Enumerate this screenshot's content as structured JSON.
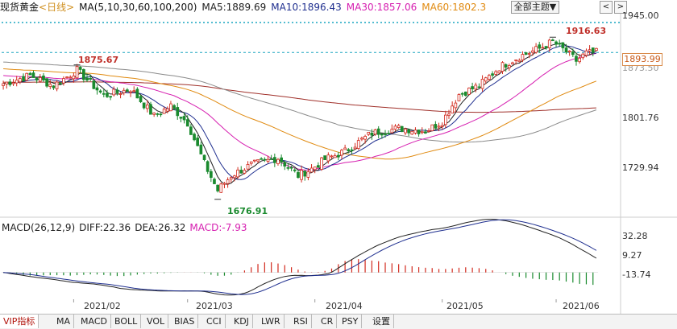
{
  "header": {
    "instrument": "现货黄金",
    "period": "<日线>",
    "ma_spec": "MA(5,10,30,60,100,200)",
    "ma5": "MA5:1889.69",
    "ma10": "MA10:1896.43",
    "ma30": "MA30:1857.06",
    "ma60": "MA60:1802.3",
    "theme_button": "全部主题▼",
    "prev_icon": "<",
    "next_icon": ">"
  },
  "macd_header": {
    "spec": "MACD(26,12,9)",
    "diff": "DIFF:22.36",
    "dea": "DEA:26.32",
    "macd": "MACD:-7.93"
  },
  "tabs": [
    "VIP指标",
    "MA",
    "MACD",
    "BOLL",
    "VOL",
    "BIAS",
    "CCI",
    "KDJ",
    "LWR",
    "RSI",
    "CR",
    "PSY",
    "设置"
  ],
  "colors": {
    "up": "#d22a1e",
    "down": "#1a8a2e",
    "ma5": "#222222",
    "ma10": "#1f2f8f",
    "ma30": "#d61fb0",
    "ma60": "#e08a10",
    "ma100": "#8a8a8a",
    "ma200": "#a0302a"
  },
  "chart_data": [
    {
      "type": "candlestick",
      "title": "",
      "y_ticks": [
        "1945.00",
        "1873.50",
        "1801.76",
        "1729.94"
      ],
      "y_tick_values": [
        1945.0,
        1873.5,
        1801.76,
        1729.94
      ],
      "ylim": [
        1660,
        1955
      ],
      "current_price": "1893.99",
      "current_price_value": 1893.99,
      "x_ticks": [
        "2021/02",
        "2021/03",
        "2021/04",
        "2021/05",
        "2021/06"
      ],
      "x_tick_indices": [
        21,
        55,
        93,
        131,
        165
      ],
      "annotations": [
        {
          "text": "1875.67",
          "index": 22,
          "value": 1875.67
        },
        {
          "text": "1916.63",
          "index": 164,
          "value": 1916.63
        },
        {
          "text": "1676.91",
          "index": 64,
          "value": 1676.91
        }
      ],
      "grid": false,
      "series_lines": [
        "MA5",
        "MA10",
        "MA30",
        "MA60",
        "MA100",
        "MA200"
      ]
    },
    {
      "type": "macd",
      "y_ticks": [
        "32.28",
        "9.27",
        "-13.74"
      ],
      "y_tick_values": [
        32.28,
        9.27,
        -13.74
      ],
      "ylim": [
        -24,
        38
      ],
      "series": [
        {
          "name": "DIFF",
          "last": 22.36
        },
        {
          "name": "DEA",
          "last": 26.32
        },
        {
          "name": "MACD",
          "last": -7.93
        }
      ]
    }
  ]
}
